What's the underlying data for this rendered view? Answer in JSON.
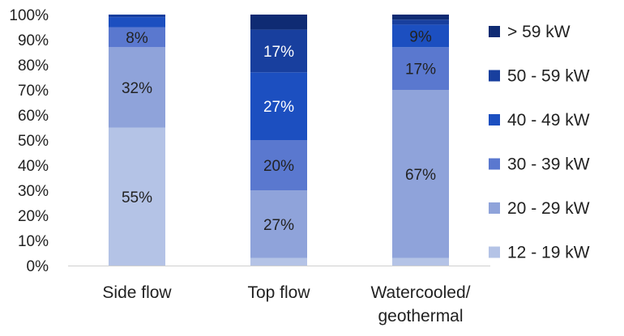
{
  "chart_data": {
    "type": "bar",
    "stacked": true,
    "normalized": true,
    "categories": [
      "Side flow",
      "Top flow",
      "Watercooled/ geothermal"
    ],
    "category_lines": [
      [
        "Side flow"
      ],
      [
        "Top flow"
      ],
      [
        "Watercooled/",
        "geothermal"
      ]
    ],
    "series": [
      {
        "name": "12 - 19 kW",
        "color": "#b4c3e6",
        "values": [
          55,
          3,
          3
        ],
        "labels": [
          "55%",
          "",
          ""
        ],
        "label_color": "#222222"
      },
      {
        "name": "20 - 29 kW",
        "color": "#8fa3da",
        "values": [
          32,
          27,
          67
        ],
        "labels": [
          "32%",
          "27%",
          "67%"
        ],
        "label_color": "#222222"
      },
      {
        "name": "30 - 39 kW",
        "color": "#5a78cf",
        "values": [
          8,
          20,
          17
        ],
        "labels": [
          "8%",
          "20%",
          "17%"
        ],
        "label_color": "#222222"
      },
      {
        "name": "40 - 49 kW",
        "color": "#1c4fc0",
        "values": [
          4,
          27,
          9
        ],
        "labels": [
          "",
          "27%",
          "9%"
        ],
        "label_color": "#ffffff"
      },
      {
        "name": "50 - 59 kW",
        "color": "#183f9e",
        "values": [
          1,
          17,
          2
        ],
        "labels": [
          "",
          "17%",
          ""
        ],
        "label_color": "#ffffff"
      },
      {
        "name": "> 59 kW",
        "color": "#0f2b73",
        "values": [
          0,
          6,
          2
        ],
        "labels": [
          "",
          "",
          ""
        ],
        "label_color": "#ffffff"
      }
    ],
    "label_colors_override": {
      "9%": "#222222"
    },
    "ylim": [
      0,
      100
    ],
    "yticks": [
      "0%",
      "10%",
      "20%",
      "30%",
      "40%",
      "50%",
      "60%",
      "70%",
      "80%",
      "90%",
      "100%"
    ],
    "title": "",
    "xlabel": "",
    "ylabel": "",
    "grid": false,
    "legend_position": "right"
  }
}
